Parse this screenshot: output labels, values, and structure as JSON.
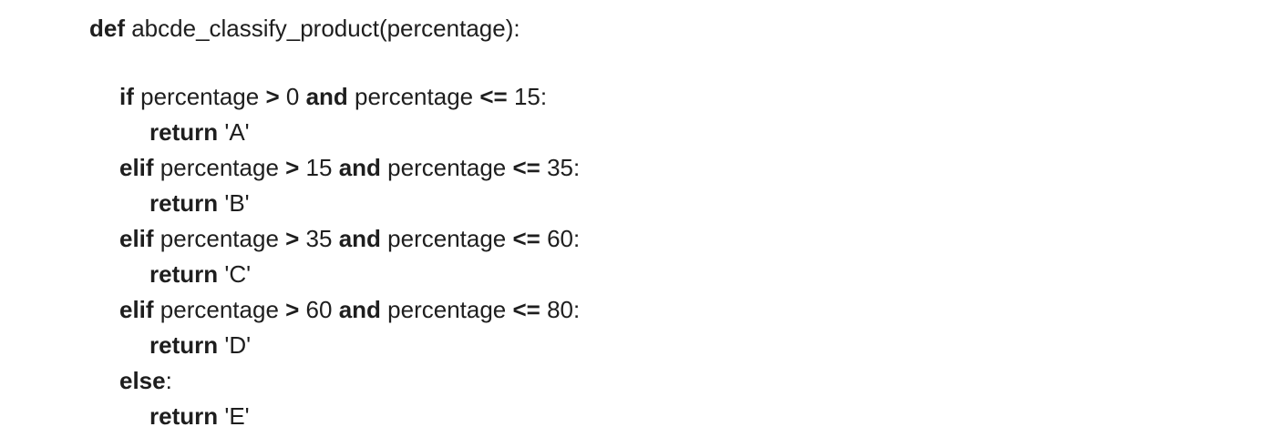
{
  "code": {
    "lines": [
      {
        "indent": 0,
        "tokens": [
          {
            "t": "def",
            "b": true
          },
          {
            "t": " abcde_classify_product(percentage):",
            "b": false
          }
        ]
      },
      {
        "indent": 1,
        "tokens": [
          {
            "t": "if",
            "b": true
          },
          {
            "t": " percentage ",
            "b": false
          },
          {
            "t": ">",
            "b": true
          },
          {
            "t": " 0 ",
            "b": false
          },
          {
            "t": "and",
            "b": true
          },
          {
            "t": " percentage ",
            "b": false
          },
          {
            "t": "<=",
            "b": true
          },
          {
            "t": " 15:",
            "b": false
          }
        ]
      },
      {
        "indent": 2,
        "tokens": [
          {
            "t": "return",
            "b": true
          },
          {
            "t": " 'A'",
            "b": false
          }
        ]
      },
      {
        "indent": 1,
        "tokens": [
          {
            "t": "elif",
            "b": true
          },
          {
            "t": " percentage ",
            "b": false
          },
          {
            "t": ">",
            "b": true
          },
          {
            "t": " 15 ",
            "b": false
          },
          {
            "t": "and",
            "b": true
          },
          {
            "t": " percentage ",
            "b": false
          },
          {
            "t": "<=",
            "b": true
          },
          {
            "t": " 35:",
            "b": false
          }
        ]
      },
      {
        "indent": 2,
        "tokens": [
          {
            "t": "return",
            "b": true
          },
          {
            "t": " 'B'",
            "b": false
          }
        ]
      },
      {
        "indent": 1,
        "tokens": [
          {
            "t": "elif",
            "b": true
          },
          {
            "t": " percentage ",
            "b": false
          },
          {
            "t": ">",
            "b": true
          },
          {
            "t": " 35 ",
            "b": false
          },
          {
            "t": "and",
            "b": true
          },
          {
            "t": " percentage ",
            "b": false
          },
          {
            "t": "<=",
            "b": true
          },
          {
            "t": " 60:",
            "b": false
          }
        ]
      },
      {
        "indent": 2,
        "tokens": [
          {
            "t": "return",
            "b": true
          },
          {
            "t": " 'C'",
            "b": false
          }
        ]
      },
      {
        "indent": 1,
        "tokens": [
          {
            "t": "elif",
            "b": true
          },
          {
            "t": " percentage ",
            "b": false
          },
          {
            "t": ">",
            "b": true
          },
          {
            "t": " 60 ",
            "b": false
          },
          {
            "t": "and",
            "b": true
          },
          {
            "t": " percentage ",
            "b": false
          },
          {
            "t": "<=",
            "b": true
          },
          {
            "t": " 80:",
            "b": false
          }
        ]
      },
      {
        "indent": 2,
        "tokens": [
          {
            "t": "return",
            "b": true
          },
          {
            "t": " 'D'",
            "b": false
          }
        ]
      },
      {
        "indent": 1,
        "tokens": [
          {
            "t": "else",
            "b": true
          },
          {
            "t": ":",
            "b": false
          }
        ]
      },
      {
        "indent": 2,
        "tokens": [
          {
            "t": "return",
            "b": true
          },
          {
            "t": " 'E'",
            "b": false
          }
        ]
      }
    ]
  }
}
